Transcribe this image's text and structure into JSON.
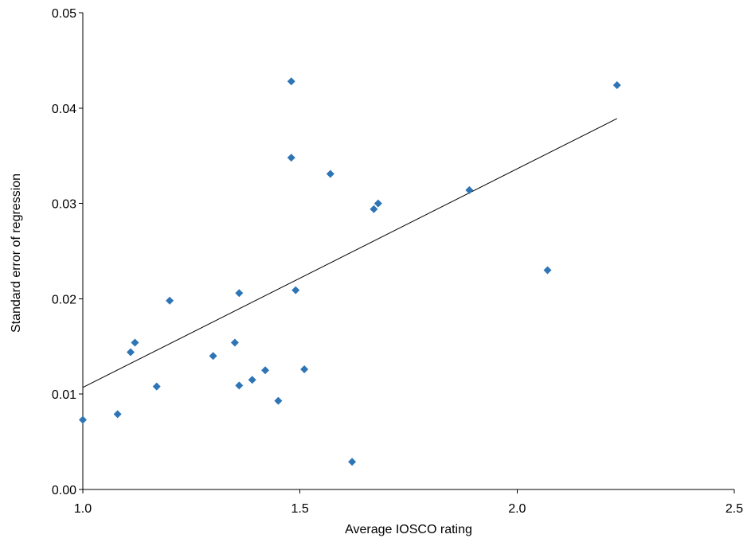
{
  "chart_data": {
    "type": "scatter",
    "title": "",
    "xlabel": "Average IOSCO rating",
    "ylabel": "Standard error of regression",
    "xlim": [
      1.0,
      2.5
    ],
    "ylim": [
      0.0,
      0.05
    ],
    "x_ticks": [
      "1.0",
      "1.5",
      "2.0",
      "2.5"
    ],
    "y_ticks": [
      "0.00",
      "0.01",
      "0.02",
      "0.03",
      "0.04",
      "0.05"
    ],
    "grid": false,
    "legend": "none",
    "marker": "diamond",
    "marker_color": "#2E75B6",
    "trendline": {
      "x": [
        1.0,
        2.23
      ],
      "y": [
        0.0107,
        0.0389
      ],
      "color": "#000000"
    },
    "series": [
      {
        "points": [
          {
            "x": 1.0,
            "y": 0.0073
          },
          {
            "x": 1.08,
            "y": 0.0079
          },
          {
            "x": 1.11,
            "y": 0.0144
          },
          {
            "x": 1.12,
            "y": 0.0154
          },
          {
            "x": 1.17,
            "y": 0.0108
          },
          {
            "x": 1.2,
            "y": 0.0198
          },
          {
            "x": 1.3,
            "y": 0.014
          },
          {
            "x": 1.35,
            "y": 0.0154
          },
          {
            "x": 1.36,
            "y": 0.0206
          },
          {
            "x": 1.36,
            "y": 0.0109
          },
          {
            "x": 1.39,
            "y": 0.0115
          },
          {
            "x": 1.42,
            "y": 0.0125
          },
          {
            "x": 1.45,
            "y": 0.0093
          },
          {
            "x": 1.48,
            "y": 0.0428
          },
          {
            "x": 1.48,
            "y": 0.0348
          },
          {
            "x": 1.49,
            "y": 0.0209
          },
          {
            "x": 1.51,
            "y": 0.0126
          },
          {
            "x": 1.57,
            "y": 0.0331
          },
          {
            "x": 1.62,
            "y": 0.0029
          },
          {
            "x": 1.67,
            "y": 0.0294
          },
          {
            "x": 1.68,
            "y": 0.03
          },
          {
            "x": 1.89,
            "y": 0.0314
          },
          {
            "x": 2.07,
            "y": 0.023
          },
          {
            "x": 2.23,
            "y": 0.0424
          }
        ]
      }
    ]
  }
}
